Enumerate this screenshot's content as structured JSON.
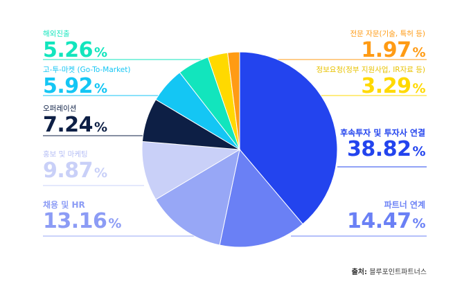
{
  "chart_data": {
    "type": "pie",
    "unit": "%",
    "slices": [
      {
        "label": "후속투자 및 투자사 연결",
        "value": 38.82,
        "color": "#2344ee"
      },
      {
        "label": "파트너 연계",
        "value": 14.47,
        "color": "#6a80f5"
      },
      {
        "label": "채용 및 HR",
        "value": 13.16,
        "color": "#97a7f6"
      },
      {
        "label": "홍보 및 마케팅",
        "value": 9.87,
        "color": "#c9d0f8"
      },
      {
        "label": "오퍼레이션",
        "value": 7.24,
        "color": "#0d1f45"
      },
      {
        "label": "고-투-마켓 (Go-To-Market)",
        "value": 5.92,
        "color": "#14c6f4"
      },
      {
        "label": "해외진출",
        "value": 5.26,
        "color": "#12e5bd"
      },
      {
        "label": "정보요청(정부 지원사업, IR자료 등)",
        "value": 3.29,
        "color": "#ffd900"
      },
      {
        "label": "전문 자문(기술, 특허 등)",
        "value": 1.97,
        "color": "#ff9b14"
      }
    ]
  },
  "labels": [
    {
      "cat": "해외진출",
      "num": "5.26"
    },
    {
      "cat": "고-투-마켓 (Go-To-Market)",
      "num": "5.92"
    },
    {
      "cat": "오퍼레이션",
      "num": "7.24"
    },
    {
      "cat": "홍보 및 마케팅",
      "num": "9.87"
    },
    {
      "cat": "채용 및 HR",
      "num": "13.16"
    },
    {
      "cat": "전문 자문(기술, 특허 등)",
      "num": "1.97"
    },
    {
      "cat": "정보요청(정부 지원사업, IR자료 등)",
      "num": "3.29"
    },
    {
      "cat": "후속투자 및 투자사 연결",
      "num": "38.82"
    },
    {
      "cat": "파트너 연계",
      "num": "14.47"
    }
  ],
  "unit_symbol": "%",
  "source": {
    "label": "출처:",
    "text": "블루포인트파트너스"
  }
}
